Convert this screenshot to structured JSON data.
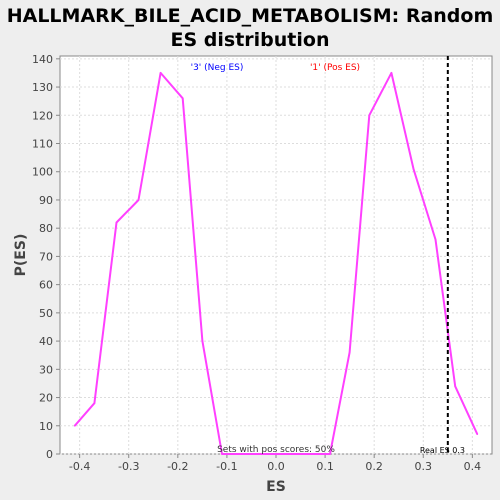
{
  "chart_data": {
    "type": "line",
    "title": "HALLMARK_BILE_ACID_METABOLISM: Random ES distribution",
    "title_lines": [
      "HALLMARK_BILE_ACID_METABOLISM: Random",
      "ES distribution"
    ],
    "xlabel": "ES",
    "ylabel": "P(ES)",
    "xlim": [
      -0.44,
      0.44
    ],
    "ylim": [
      0,
      141
    ],
    "x_ticks": [
      -0.4,
      -0.3,
      -0.2,
      -0.1,
      0.0,
      0.1,
      0.2,
      0.3,
      0.4
    ],
    "x_tick_labels": [
      "-0.4",
      "-0.3",
      "-0.2",
      "-0.1",
      "0.0",
      "0.1",
      "0.2",
      "0.3",
      "0.4"
    ],
    "y_ticks": [
      0,
      10,
      20,
      30,
      40,
      50,
      60,
      70,
      80,
      90,
      100,
      110,
      120,
      130,
      140
    ],
    "grid": true,
    "series": [
      {
        "color": "#ff40ff",
        "x": [
          -0.41,
          -0.37,
          -0.325,
          -0.28,
          -0.235,
          -0.19,
          -0.15,
          -0.11,
          -0.02,
          0.02,
          0.11,
          0.15,
          0.19,
          0.235,
          0.28,
          0.325,
          0.365,
          0.41
        ],
        "y": [
          10,
          18,
          82,
          90,
          135,
          126,
          40,
          0,
          0,
          0,
          0,
          36,
          120,
          135,
          101,
          76,
          24,
          7
        ]
      }
    ],
    "real_es": {
      "x": 0.35,
      "label": "Real ES 0.3",
      "color": "#000000"
    },
    "annotations": {
      "neg_label": "'3' (Neg ES)",
      "neg_color": "#0000ff",
      "pos_label": "'1' (Pos ES)",
      "pos_color": "#ff0000",
      "pos_scores": "Sets with pos scores: 50%"
    },
    "colors": {
      "background": "#eeeeee",
      "plot_background": "#ffffff",
      "grid": "#dddddd",
      "axis_text": "#444444"
    }
  }
}
